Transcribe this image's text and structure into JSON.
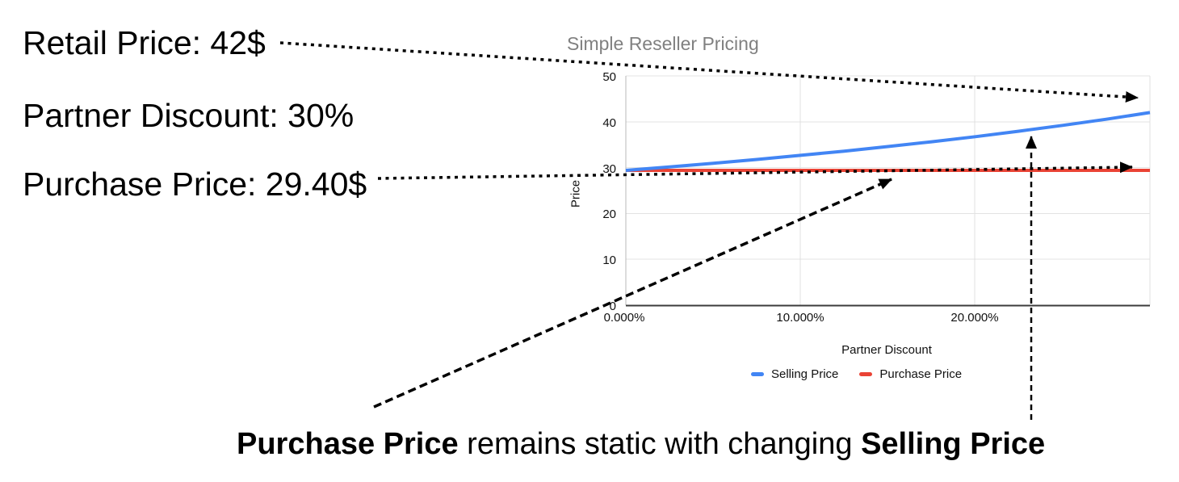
{
  "left_labels": [
    "Retail Price: 42$",
    "Partner Discount: 30%",
    "Purchase Price: 29.40$"
  ],
  "caption": {
    "bold_1": "Purchase Price",
    "middle": " remains static with changing ",
    "bold_2": "Selling Price"
  },
  "chart_data": {
    "type": "line",
    "title": "Simple Reseller Pricing",
    "xlabel": "Partner Discount",
    "ylabel": "Price",
    "x_tick_labels": [
      "0.000%",
      "10.000%",
      "20.000%"
    ],
    "y_ticks": [
      0,
      10,
      20,
      30,
      40,
      50
    ],
    "ylim": [
      0,
      50
    ],
    "xlim_pct": [
      0,
      30
    ],
    "grid": true,
    "legend_position": "bottom",
    "x_pct": [
      0,
      2.5,
      5,
      7.5,
      10,
      12.5,
      15,
      17.5,
      20,
      22.5,
      25,
      27.5,
      30
    ],
    "series": [
      {
        "name": "Selling Price",
        "color": "#4285f4",
        "values": [
          29.4,
          30.15,
          30.95,
          31.78,
          32.67,
          33.6,
          34.59,
          35.64,
          36.75,
          37.94,
          39.2,
          40.55,
          42
        ]
      },
      {
        "name": "Purchase Price",
        "color": "#ea4335",
        "values": [
          29.4,
          29.4,
          29.4,
          29.4,
          29.4,
          29.4,
          29.4,
          29.4,
          29.4,
          29.4,
          29.4,
          29.4,
          29.4
        ]
      }
    ]
  }
}
